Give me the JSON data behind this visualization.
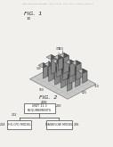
{
  "bg_color": "#f2f0ec",
  "header_text": "Patent Application Publication   Nov. 13, 2008   Sheet 1 of 8   US 2008/0281557 A1",
  "fig1_label": "FIG.  1",
  "fig1_num": "10",
  "fig2_label": "FIG.  2",
  "fig2_num": "200",
  "fig2_top_line1": "UNIT 11.3",
  "fig2_top_line2": "REQUIREMENTS",
  "fig2_left_label": "HD-CFD MODEL",
  "fig2_right_label": "DATAFLOW MODEL",
  "fig2_left_num": "204",
  "fig2_right_num": "206",
  "fig2_arr_num": "202",
  "line_color": "#444444",
  "text_color": "#222222",
  "box_color": "#ffffff",
  "rack_dark": "#555555",
  "rack_mid": "#888888",
  "rack_light": "#bbbbbb",
  "floor_color": "#c8c8c8",
  "floor_edge": "#666666"
}
